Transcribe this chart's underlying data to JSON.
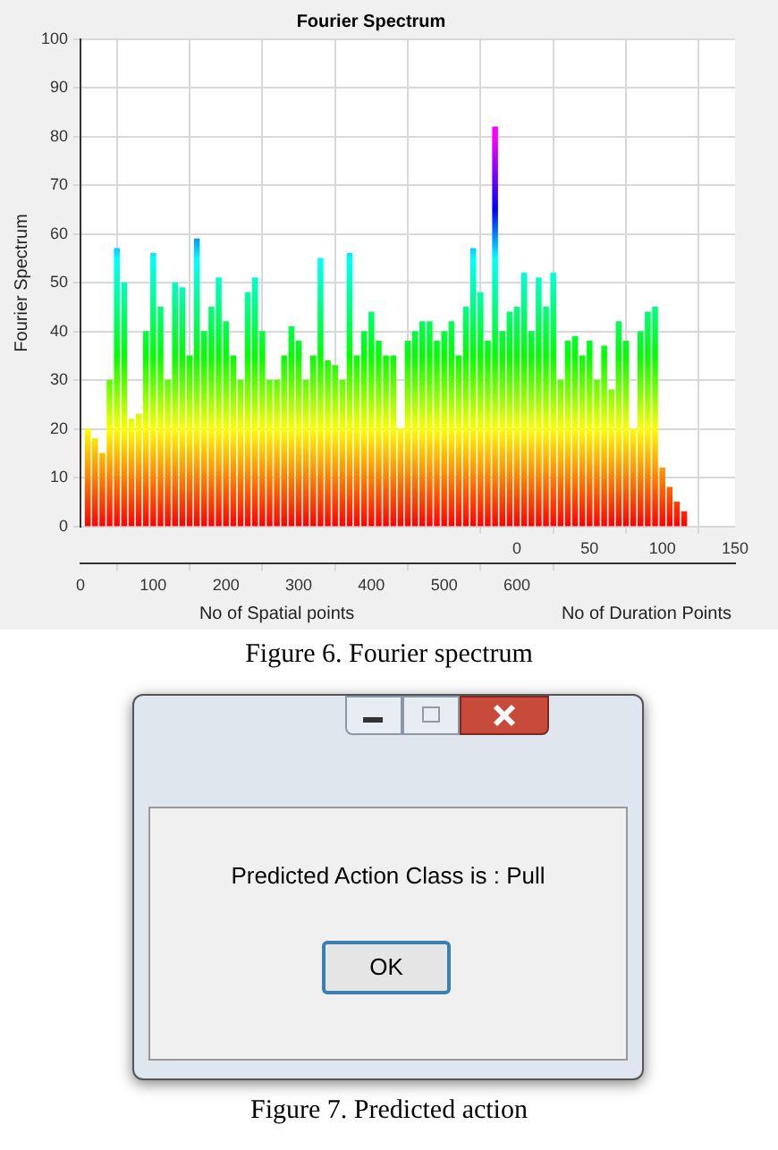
{
  "chart_data": {
    "type": "bar",
    "title": "Fourier Spectrum",
    "xlabel": "No of Spatial points",
    "ylabel": "Fourier Spectrum",
    "x2label": "No of Duration Points",
    "annotations": [
      "Figure 6. Fourier spectrum",
      "Predicted Action Class is :  Pull",
      "OK",
      "Figure 7. Predicted action"
    ],
    "x": [
      10,
      20,
      30,
      40,
      50,
      60,
      70,
      80,
      90,
      100,
      110,
      120,
      130,
      140,
      150,
      160,
      170,
      180,
      190,
      200,
      210,
      220,
      230,
      240,
      250,
      260,
      270,
      280,
      290,
      300,
      310,
      320,
      330,
      340,
      350,
      360,
      370,
      380,
      390,
      400,
      410,
      420,
      430,
      440,
      450,
      460,
      470,
      480,
      490,
      500,
      510,
      520,
      530,
      540,
      550,
      560,
      570,
      580,
      590,
      600,
      610,
      620,
      630,
      640,
      650,
      660,
      670,
      680,
      690,
      700,
      710,
      720,
      730,
      740,
      750,
      760,
      770,
      780,
      790,
      800,
      810,
      820,
      830
    ],
    "values": [
      20,
      18,
      15,
      30,
      57,
      50,
      22,
      23,
      40,
      56,
      45,
      30,
      50,
      49,
      35,
      59,
      40,
      45,
      51,
      42,
      35,
      30,
      48,
      51,
      40,
      30,
      30,
      35,
      41,
      38,
      30,
      35,
      55,
      34,
      33,
      30,
      56,
      35,
      40,
      44,
      38,
      35,
      35,
      20,
      38,
      40,
      42,
      42,
      38,
      40,
      42,
      35,
      45,
      57,
      48,
      38,
      82,
      40,
      44,
      45,
      52,
      40,
      51,
      45,
      52,
      30,
      38,
      39,
      35,
      38,
      30,
      37,
      28,
      42,
      38,
      20,
      40,
      44,
      45,
      12,
      8,
      5,
      3
    ],
    "xlim": [
      0,
      900
    ],
    "xticks": [
      0,
      100,
      200,
      300,
      400,
      500,
      600
    ],
    "x2lim": [
      -300,
      150
    ],
    "x2ticks": [
      0,
      50,
      100,
      150
    ],
    "ylim": [
      0,
      100
    ],
    "yticks": [
      0,
      10,
      20,
      30,
      40,
      50,
      60,
      70,
      80,
      90,
      100
    ],
    "grid": true,
    "legend": false
  }
}
